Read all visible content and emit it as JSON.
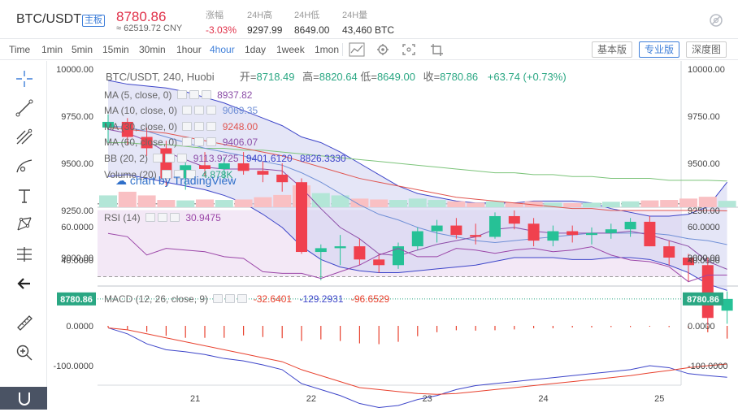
{
  "ticker": {
    "symbol": "BTC/USDT",
    "tag": "主板",
    "price": "8780.86",
    "cny": "≈ 62519.72 CNY",
    "change_label": "涨幅",
    "change_value": "-3.03%",
    "high_label": "24H高",
    "high_value": "9297.99",
    "low_label": "24H低",
    "low_value": "8649.00",
    "vol_label": "24H量",
    "vol_value": "43,460 BTC",
    "eye_icon": "eye-off-icon"
  },
  "toolbar": {
    "time_label": "Time",
    "intervals": [
      "1min",
      "5min",
      "15min",
      "30min",
      "1hour",
      "4hour",
      "1day",
      "1week",
      "1mon"
    ],
    "active_interval": "4hour",
    "icons": [
      "indicator-icon",
      "settings-icon",
      "fullscreen-icon",
      "screenshot-icon"
    ],
    "modes": [
      "基本版",
      "专业版",
      "深度图"
    ],
    "active_mode": "专业版"
  },
  "tools": [
    "crosshair-icon",
    "trend-line-icon",
    "fib-icon",
    "brush-icon",
    "text-icon",
    "pattern-icon",
    "measure-icon",
    "back-arrow-icon",
    "ruler-icon",
    "zoom-in-icon",
    "magnet-icon"
  ],
  "chart_title": {
    "symbol": "BTC/USDT, 240, Huobi",
    "open_label": "开=",
    "open": "8718.49",
    "high_label": "高=",
    "high": "8820.64",
    "low_label": "低=",
    "low": "8649.00",
    "close_label": "收=",
    "close": "8780.86",
    "change": "+63.74 (+0.73%)"
  },
  "indicators": {
    "ma5_label": "MA (5, close, 0)",
    "ma5_value": "8937.82",
    "ma10_label": "MA (10, close, 0)",
    "ma10_value": "9069.35",
    "ma30_label": "MA (30, close, 0)",
    "ma30_value": "9248.00",
    "ma60_label": "MA (60, close, 0)",
    "ma60_value": "9406.07",
    "bb_label": "BB (20, 2)",
    "bb_mid": "9113.9725",
    "bb_upper": "9401.6120",
    "bb_lower": "8826.3330",
    "vol_label": "Volume (20)",
    "vol_value": "4.878K",
    "watermark": "chart by TradingView",
    "rsi_label": "RSI (14)",
    "rsi_value": "30.9475",
    "macd_label": "MACD (12, 26, close, 9)",
    "macd_hist": "-32.6401",
    "macd_line": "-129.2931",
    "macd_signal": "-96.6529"
  },
  "axes": {
    "price_ticks": [
      "10000.00",
      "9750.00",
      "9500.00",
      "9250.00",
      "9000.00"
    ],
    "price_tick_values": [
      10000,
      9750,
      9500,
      9250,
      9000
    ],
    "current_price": "8780.86",
    "rsi_ticks": [
      "60.0000",
      "40.0000"
    ],
    "rsi_tick_values": [
      60,
      40
    ],
    "macd_ticks": [
      "0.0000",
      "-100.0000"
    ],
    "macd_tick_values": [
      0,
      -100
    ],
    "x_ticks": [
      "21",
      "22",
      "23",
      "24",
      "25"
    ],
    "x_tick_index": [
      4.5,
      10.5,
      16.5,
      22.5,
      28.5
    ]
  },
  "colors": {
    "up": "#26c196",
    "down": "#f0414e",
    "bb": "#3d45c9",
    "bb_fill": "#cfd2f0",
    "ma5": "#8c4ea8",
    "ma10": "#6f8fd6",
    "ma30": "#e05550",
    "ma60": "#7cc47a",
    "rsi": "#9b46a8",
    "macd": "#3d45c9",
    "signal": "#e8412e",
    "hist": "#e8412e"
  },
  "chart_data": {
    "type": "candlestick",
    "ohlc": [
      [
        9690,
        9760,
        9610,
        9720
      ],
      [
        9720,
        9740,
        9600,
        9640
      ],
      [
        9640,
        9690,
        9540,
        9580
      ],
      [
        9580,
        9620,
        9380,
        9420
      ],
      [
        9420,
        9540,
        9360,
        9490
      ],
      [
        9490,
        9560,
        9430,
        9470
      ],
      [
        9470,
        9530,
        9420,
        9500
      ],
      [
        9500,
        9560,
        9440,
        9460
      ],
      [
        9460,
        9510,
        9400,
        9440
      ],
      [
        9440,
        9500,
        9350,
        9400
      ],
      [
        9400,
        9420,
        9020,
        9030
      ],
      [
        9030,
        9070,
        8880,
        9050
      ],
      [
        9050,
        9120,
        8960,
        9060
      ],
      [
        9060,
        9100,
        8960,
        8990
      ],
      [
        8990,
        9020,
        8920,
        8960
      ],
      [
        8960,
        9080,
        8940,
        9060
      ],
      [
        9060,
        9160,
        9040,
        9140
      ],
      [
        9140,
        9200,
        9080,
        9170
      ],
      [
        9170,
        9210,
        9100,
        9120
      ],
      [
        9120,
        9180,
        9070,
        9110
      ],
      [
        9110,
        9240,
        9100,
        9220
      ],
      [
        9220,
        9250,
        9150,
        9180
      ],
      [
        9180,
        9210,
        9060,
        9090
      ],
      [
        9090,
        9170,
        9060,
        9140
      ],
      [
        9140,
        9170,
        9080,
        9120
      ],
      [
        9120,
        9160,
        9070,
        9130
      ],
      [
        9130,
        9180,
        9100,
        9150
      ],
      [
        9150,
        9210,
        9110,
        9190
      ],
      [
        9190,
        9220,
        9060,
        9060
      ],
      [
        9060,
        9090,
        8960,
        9000
      ],
      [
        9000,
        9020,
        8870,
        8960
      ],
      [
        8960,
        9000,
        8640,
        8680
      ],
      [
        8718.49,
        8820.64,
        8649,
        8780.86
      ]
    ],
    "volume": [
      2.6,
      3.4,
      2.6,
      1.6,
      1.5,
      1.7,
      1.6,
      1.7,
      2.2,
      2.7,
      4.8,
      3.1,
      2.6,
      1.9,
      1.7,
      1.6,
      1.9,
      1.6,
      1.3,
      1.0,
      1.3,
      1.0,
      1.3,
      1.0,
      0.9,
      1.0,
      1.2,
      1.3,
      1.5,
      1.6,
      1.9,
      2.3,
      1.4
    ],
    "bb_upper": [
      9940,
      9920,
      9910,
      9900,
      9880,
      9850,
      9820,
      9780,
      9740,
      9700,
      9640,
      9610,
      9560,
      9500,
      9440,
      9380,
      9340,
      9320,
      9300,
      9290,
      9290,
      9290,
      9300,
      9300,
      9300,
      9290,
      9260,
      9240,
      9220,
      9220,
      9230,
      9270,
      9400
    ],
    "bb_lower": [
      9430,
      9440,
      9420,
      9400,
      9380,
      9360,
      9330,
      9290,
      9230,
      9160,
      9060,
      8990,
      8950,
      8930,
      8920,
      8920,
      8930,
      8940,
      8950,
      8960,
      8980,
      9000,
      9000,
      9000,
      8990,
      8990,
      9000,
      9000,
      8990,
      8960,
      8920,
      8860,
      8826
    ],
    "ma5": [
      9680,
      9660,
      9620,
      9560,
      9520,
      9480,
      9470,
      9470,
      9470,
      9460,
      9370,
      9260,
      9160,
      9100,
      9020,
      9010,
      9040,
      9070,
      9090,
      9110,
      9150,
      9160,
      9140,
      9130,
      9130,
      9130,
      9130,
      9140,
      9120,
      9090,
      9060,
      8980,
      8938
    ],
    "ma10": [
      9700,
      9690,
      9670,
      9640,
      9610,
      9580,
      9560,
      9540,
      9510,
      9490,
      9450,
      9400,
      9340,
      9280,
      9230,
      9200,
      9160,
      9130,
      9110,
      9090,
      9080,
      9090,
      9100,
      9110,
      9120,
      9130,
      9130,
      9130,
      9130,
      9120,
      9100,
      9090,
      9069
    ],
    "ma30": [
      9690,
      9680,
      9670,
      9660,
      9640,
      9620,
      9600,
      9580,
      9560,
      9540,
      9510,
      9480,
      9450,
      9420,
      9400,
      9380,
      9360,
      9340,
      9320,
      9310,
      9300,
      9290,
      9280,
      9270,
      9260,
      9260,
      9250,
      9250,
      9250,
      9250,
      9250,
      9250,
      9248
    ],
    "ma60": [
      9610,
      9610,
      9600,
      9600,
      9590,
      9580,
      9580,
      9570,
      9570,
      9560,
      9550,
      9540,
      9530,
      9520,
      9510,
      9500,
      9490,
      9480,
      9470,
      9460,
      9450,
      9450,
      9440,
      9440,
      9430,
      9430,
      9420,
      9420,
      9420,
      9410,
      9410,
      9410,
      9406
    ],
    "rsi": [
      56,
      54,
      43,
      47,
      46,
      45,
      42,
      41,
      33,
      32,
      32,
      29,
      33,
      37,
      43,
      47,
      42,
      42,
      47,
      46,
      44,
      46,
      47,
      45,
      46,
      48,
      43,
      40,
      39,
      36,
      27,
      31,
      31
    ],
    "macd": [
      -5,
      -20,
      -45,
      -60,
      -65,
      -72,
      -82,
      -88,
      -98,
      -110,
      -145,
      -160,
      -175,
      -195,
      -205,
      -200,
      -185,
      -175,
      -160,
      -150,
      -145,
      -140,
      -135,
      -130,
      -125,
      -120,
      -115,
      -110,
      -100,
      -105,
      -120,
      -125,
      -129
    ],
    "signal": [
      -5,
      -10,
      -20,
      -30,
      -40,
      -50,
      -60,
      -70,
      -80,
      -90,
      -110,
      -125,
      -140,
      -155,
      -160,
      -165,
      -170,
      -172,
      -170,
      -165,
      -160,
      -155,
      -150,
      -145,
      -140,
      -135,
      -130,
      -125,
      -118,
      -112,
      -105,
      -100,
      -96
    ],
    "hist": [
      -4,
      -9,
      -15,
      -25,
      -30,
      -30,
      -30,
      -24,
      -28,
      -31,
      -38,
      -34,
      -38,
      -44,
      -46,
      -40,
      -26,
      -16,
      -11,
      -12,
      -11,
      -9,
      -6,
      -6,
      -4,
      -4,
      -3,
      -3,
      -2,
      -3,
      -6,
      -16,
      -32
    ]
  }
}
